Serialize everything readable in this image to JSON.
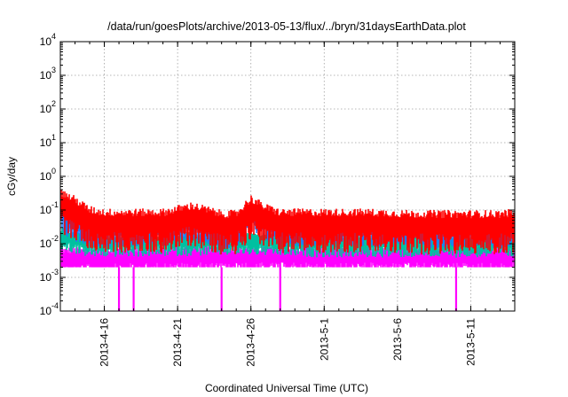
{
  "chart_data": {
    "type": "line",
    "title": "/data/run/goesPlots/archive/2013-05-13/flux/../bryn/31daysEarthData.plot",
    "xlabel": "Coordinated Universal Time (UTC)",
    "ylabel": "cGy/day",
    "y_scale": "log",
    "ylim": [
      0.0001,
      10000
    ],
    "y_ticks": [
      {
        "value": 0.0001,
        "base": "10",
        "exp": "-4"
      },
      {
        "value": 0.001,
        "base": "10",
        "exp": "-3"
      },
      {
        "value": 0.01,
        "base": "10",
        "exp": "-2"
      },
      {
        "value": 0.1,
        "base": "10",
        "exp": "-1"
      },
      {
        "value": 1,
        "base": "10",
        "exp": "0"
      },
      {
        "value": 10,
        "base": "10",
        "exp": "1"
      },
      {
        "value": 100,
        "base": "10",
        "exp": "2"
      },
      {
        "value": 1000,
        "base": "10",
        "exp": "3"
      },
      {
        "value": 10000,
        "base": "10",
        "exp": "4"
      }
    ],
    "xlim": [
      "2013-04-13",
      "2013-05-14"
    ],
    "x_ticks": [
      "2013-4-16",
      "2013-4-21",
      "2013-4-26",
      "2013-5-1",
      "2013-5-6",
      "2013-5-11"
    ],
    "x_tick_dates": [
      "2013-04-16",
      "2013-04-21",
      "2013-04-26",
      "2013-05-01",
      "2013-05-06",
      "2013-05-11"
    ],
    "grid": true,
    "series": [
      {
        "color": "#ff0000",
        "x": [
          "2013-04-13",
          "2013-04-14",
          "2013-04-15",
          "2013-04-16",
          "2013-04-18",
          "2013-04-20",
          "2013-04-22",
          "2013-04-23",
          "2013-04-24",
          "2013-04-25",
          "2013-04-26",
          "2013-04-27",
          "2013-04-28",
          "2013-05-01",
          "2013-05-04",
          "2013-05-07",
          "2013-05-10",
          "2013-05-13",
          "2013-05-14"
        ],
        "y": [
          0.2,
          0.12,
          0.06,
          0.05,
          0.05,
          0.05,
          0.08,
          0.06,
          0.045,
          0.045,
          0.13,
          0.07,
          0.05,
          0.05,
          0.05,
          0.045,
          0.045,
          0.045,
          0.05
        ]
      },
      {
        "color": "#1e78ff",
        "x": [
          "2013-04-13",
          "2013-04-14",
          "2013-04-15",
          "2013-04-16",
          "2013-04-18",
          "2013-04-20",
          "2013-04-22",
          "2013-04-23",
          "2013-04-24",
          "2013-04-25",
          "2013-04-26",
          "2013-04-27",
          "2013-04-28",
          "2013-05-01",
          "2013-05-04",
          "2013-05-07",
          "2013-05-10",
          "2013-05-13",
          "2013-05-14"
        ],
        "y": [
          0.09,
          0.05,
          0.035,
          0.035,
          0.035,
          0.035,
          0.05,
          0.04,
          0.03,
          0.03,
          0.09,
          0.05,
          0.035,
          0.035,
          0.035,
          0.032,
          0.03,
          0.03,
          0.035
        ]
      },
      {
        "color": "#00c0a0",
        "x": [
          "2013-04-13",
          "2013-04-15",
          "2013-04-20",
          "2013-04-26",
          "2013-05-01",
          "2013-05-07",
          "2013-05-14"
        ],
        "y": [
          0.02,
          0.012,
          0.013,
          0.014,
          0.012,
          0.012,
          0.012
        ]
      },
      {
        "color": "#ff00ff",
        "x": [
          "2013-04-13",
          "2013-04-15",
          "2013-04-20",
          "2013-04-26",
          "2013-05-01",
          "2013-05-07",
          "2013-05-14"
        ],
        "y": [
          0.004,
          0.004,
          0.0045,
          0.0045,
          0.0045,
          0.0045,
          0.0045
        ]
      }
    ],
    "dropouts": [
      {
        "x": "2013-04-17",
        "y": 0.0001
      },
      {
        "x": "2013-04-18",
        "y": 0.0001
      },
      {
        "x": "2013-04-24",
        "y": 0.0001
      },
      {
        "x": "2013-04-28",
        "y": 0.0001
      },
      {
        "x": "2013-05-10",
        "y": 0.0001
      }
    ]
  }
}
